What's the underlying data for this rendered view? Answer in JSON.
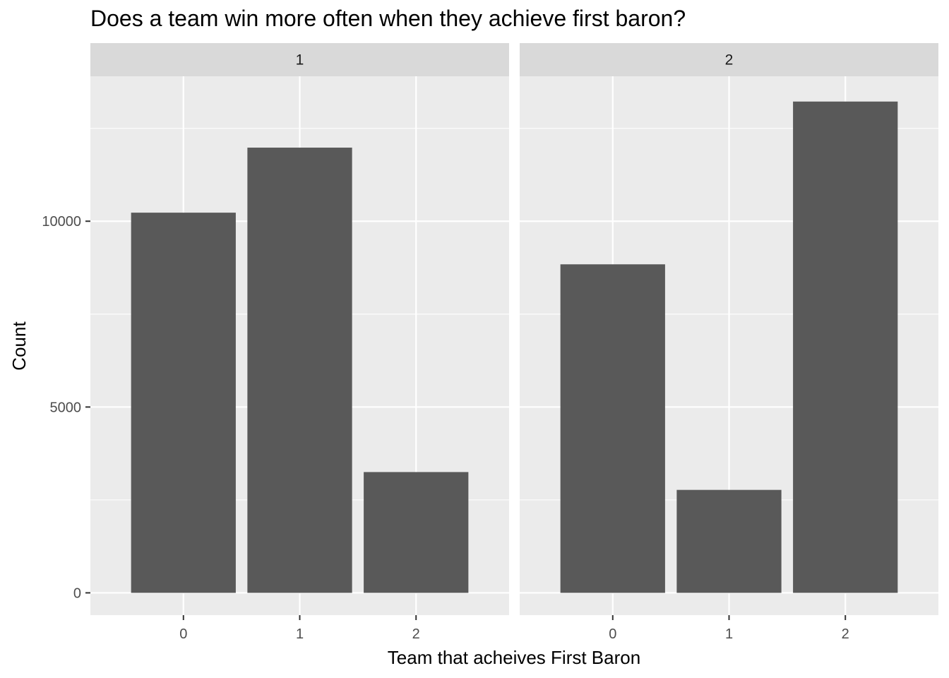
{
  "chart_data": {
    "type": "bar",
    "title": "Does a team win more often when they achieve first baron?",
    "xlabel": "Team that acheives First Baron",
    "ylabel": "Count",
    "categories": [
      "0",
      "1",
      "2"
    ],
    "ylim": [
      -600,
      13900
    ],
    "yticks": [
      0,
      5000,
      10000
    ],
    "ytick_labels": [
      "0",
      "5000",
      "10000"
    ],
    "grid": true,
    "facets": [
      {
        "label": "1",
        "values": [
          10230,
          11980,
          3250
        ]
      },
      {
        "label": "2",
        "values": [
          8840,
          2770,
          13220
        ]
      }
    ],
    "colors": {
      "bar": "#595959",
      "panel_bg": "#ebebeb",
      "strip_bg": "#d9d9d9",
      "grid": "#ffffff",
      "axis_text": "#4d4d4d",
      "text": "#000000"
    }
  }
}
